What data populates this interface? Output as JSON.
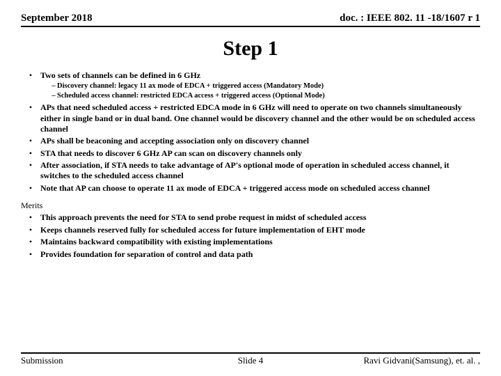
{
  "header": {
    "left": "September 2018",
    "right": "doc. : IEEE 802. 11 -18/1607 r 1"
  },
  "title": "Step 1",
  "bullets": [
    {
      "text": "Two sets of channels can be defined in 6 GHz",
      "bold": true,
      "sub": [
        "Discovery channel: legacy 11 ax mode of EDCA + triggered access (Mandatory Mode)",
        "Scheduled access channel: restricted EDCA access + triggered access (Optional Mode)"
      ]
    },
    {
      "text": "APs that need scheduled access + restricted EDCA mode in 6 GHz will need to operate on two channels simultaneously either in single band or in dual band. One channel would be discovery channel and the other would be on scheduled access channel",
      "bold": true
    },
    {
      "text": "APs shall be beaconing and accepting association only on discovery channel",
      "bold": true
    },
    {
      "text": "STA that needs to discover 6 GHz AP can scan on discovery channels only",
      "bold": true
    },
    {
      "text": "After association, if STA needs to take advantage of AP's optional mode of operation in scheduled access channel, it switches to the scheduled access channel",
      "bold": true
    },
    {
      "text": "Note that AP can choose to operate 11 ax mode of EDCA + triggered access mode on scheduled access channel",
      "bold": true
    }
  ],
  "merits_label": "Merits",
  "merits": [
    "This approach prevents the need for STA to send probe request in midst of scheduled access",
    "Keeps channels reserved fully for scheduled access for future implementation of EHT mode",
    "Maintains backward compatibility with existing implementations",
    "Provides foundation for separation of control and data path"
  ],
  "footer": {
    "left": "Submission",
    "center": "Slide 4",
    "right": "Ravi Gidvani(Samsung), et. al. ,"
  }
}
